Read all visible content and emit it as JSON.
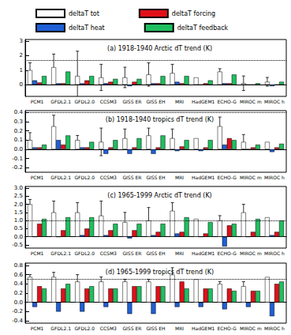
{
  "chart_data": [
    {
      "type": "bar",
      "title": "(a) 1918-1940 Arctic dT trend (K)",
      "legend": "top",
      "grid": false,
      "categories": [
        "PCM1",
        "GFDL2.1",
        "GFDL2.0",
        "CCSM3",
        "GISS ER",
        "GISS EH",
        "MRI",
        "HadGEM1",
        "ECHO-G",
        "MIROC m",
        "MIROC h"
      ],
      "ylim": [
        -0.8,
        3.1
      ],
      "yticks": [
        0,
        1,
        2,
        3
      ],
      "reference_line": 1.7,
      "series": [
        {
          "name": "deltaT tot",
          "color": "#ffffff",
          "values": [
            1.0,
            1.2,
            0.6,
            0.5,
            0.5,
            0.7,
            0.8,
            0.5,
            0.9,
            0.1,
            0.2
          ],
          "errors": [
            0.5,
            0.9,
            1.7,
            0.9,
            0.7,
            0.8,
            0.6,
            null,
            0.2,
            0.5,
            0.3
          ]
        },
        {
          "name": "deltaT heat",
          "color": "#1f5fd6",
          "values": [
            0.3,
            0.1,
            0.1,
            0.1,
            -0.1,
            0.1,
            0.2,
            0.0,
            0.1,
            0.0,
            -0.1
          ]
        },
        {
          "name": "deltaT forcing",
          "color": "#e0101a",
          "values": [
            0.15,
            0.1,
            0.3,
            0.2,
            0.2,
            0.1,
            0.1,
            0.1,
            0.1,
            0.0,
            0.0
          ]
        },
        {
          "name": "deltaT feedback",
          "color": "#1fbf5f",
          "values": [
            0.6,
            0.9,
            0.6,
            0.4,
            0.4,
            0.6,
            0.6,
            0.3,
            0.7,
            0.1,
            0.2
          ]
        }
      ]
    },
    {
      "type": "bar",
      "title": "(b) 1918-1940 tropics dT trend (K)",
      "grid": false,
      "categories": [
        "PCM1",
        "GFDL2.1",
        "GFDL2.0",
        "CCSM3",
        "GISS ER",
        "GISS EH",
        "MRI",
        "HadGEM1",
        "ECHO-G",
        "MIROC m",
        "MIROC h"
      ],
      "ylim": [
        -0.25,
        0.42
      ],
      "yticks": [
        -0.2,
        -0.1,
        {
          "value": 0,
          "label": "0.0"
        },
        0.1,
        0.2,
        0.3,
        0.4
      ],
      "reference_line": 0.4,
      "series": [
        {
          "name": "deltaT tot",
          "color": "#ffffff",
          "values": [
            0.1,
            0.25,
            0.1,
            0.08,
            0.12,
            0.15,
            0.12,
            0.12,
            0.25,
            0.08,
            0.08
          ],
          "errors": [
            0.08,
            0.12,
            0.05,
            0.15,
            0.1,
            0.08,
            0.1,
            null,
            0.1,
            0.08,
            null
          ]
        },
        {
          "name": "deltaT heat",
          "color": "#1f5fd6",
          "values": [
            0.02,
            0.1,
            0.02,
            -0.05,
            -0.05,
            -0.05,
            -0.02,
            -0.02,
            0.05,
            0.0,
            -0.03
          ]
        },
        {
          "name": "deltaT forcing",
          "color": "#e0101a",
          "values": [
            0.02,
            0.05,
            0.02,
            0.02,
            0.02,
            0.02,
            0.03,
            0.02,
            0.12,
            0.02,
            0.02
          ]
        },
        {
          "name": "deltaT feedback",
          "color": "#1fbf5f",
          "values": [
            0.05,
            0.15,
            0.08,
            0.1,
            0.12,
            0.15,
            0.1,
            0.1,
            0.1,
            0.05,
            0.06
          ]
        }
      ]
    },
    {
      "type": "bar",
      "title": "(c) 1965-1999 Arctic dT trend (K)",
      "grid": false,
      "categories": [
        "PCM1",
        "GFDL2.1",
        "GFDL2.0",
        "CCSM3",
        "GISS ER",
        "GISS EH",
        "MRI",
        "HadGEM1",
        "ECHO-G",
        "MIROC m",
        "MIROC h"
      ],
      "ylim": [
        -0.7,
        3.1
      ],
      "yticks": [
        -0.5,
        {
          "value": 0,
          "label": "0.0"
        },
        0.5,
        {
          "value": 1,
          "label": "1.0"
        },
        1.5,
        {
          "value": 2,
          "label": "2.0"
        },
        2.5,
        {
          "value": 3,
          "label": "3.0"
        }
      ],
      "reference_line": 1.0,
      "series": [
        {
          "name": "deltaT tot",
          "color": "#ffffff",
          "values": [
            2.0,
            1.5,
            1.5,
            1.3,
            0.9,
            1.0,
            1.6,
            1.1,
            1.0,
            1.5,
            1.2
          ],
          "errors": [
            0.3,
            0.7,
            0.6,
            0.9,
            0.6,
            0.8,
            0.5,
            null,
            0.3,
            0.5,
            null
          ]
        },
        {
          "name": "deltaT heat",
          "color": "#1f5fd6",
          "values": [
            0.0,
            0.0,
            0.1,
            0.1,
            -0.1,
            0.1,
            0.2,
            0.0,
            -0.6,
            0.0,
            0.1
          ]
        },
        {
          "name": "deltaT forcing",
          "color": "#e0101a",
          "values": [
            0.8,
            0.4,
            0.5,
            0.4,
            0.4,
            0.3,
            0.3,
            0.2,
            0.7,
            0.3,
            0.3
          ]
        },
        {
          "name": "deltaT feedback",
          "color": "#1fbf5f",
          "values": [
            1.1,
            1.2,
            1.2,
            0.8,
            0.8,
            0.8,
            1.2,
            0.9,
            0.8,
            1.1,
            1.0
          ]
        }
      ]
    },
    {
      "type": "bar",
      "title": "(d) 1965-1999 tropics dT trend (K)",
      "grid": false,
      "categories": [
        "PCM1",
        "GFDL2.1",
        "GFDL2.0",
        "CCSM3",
        "GISS ER",
        "GISS EH",
        "MRI",
        "HadGEM1",
        "ECHO-G",
        "MIROC m",
        "MIROC h"
      ],
      "ylim": [
        -0.45,
        0.85
      ],
      "yticks": [
        -0.4,
        -0.2,
        {
          "value": 0,
          "label": "0.0"
        },
        0.2,
        0.4,
        0.6,
        0.8
      ],
      "reference_line": 0.5,
      "series": [
        {
          "name": "deltaT tot",
          "color": "#ffffff",
          "values": [
            0.55,
            0.55,
            0.45,
            0.45,
            0.45,
            0.45,
            0.6,
            0.5,
            0.4,
            0.35,
            0.55
          ],
          "errors": [
            0.05,
            0.1,
            0.15,
            0.1,
            0.05,
            0.05,
            0.15,
            null,
            0.05,
            0.1,
            null
          ]
        },
        {
          "name": "deltaT heat",
          "color": "#1f5fd6",
          "values": [
            -0.1,
            -0.2,
            -0.2,
            -0.1,
            -0.25,
            -0.25,
            -0.1,
            -0.1,
            -0.15,
            -0.1,
            -0.3
          ]
        },
        {
          "name": "deltaT forcing",
          "color": "#e0101a",
          "values": [
            0.35,
            0.3,
            0.3,
            0.3,
            0.35,
            0.35,
            0.45,
            0.3,
            0.3,
            0.25,
            0.4
          ]
        },
        {
          "name": "deltaT feedback",
          "color": "#1fbf5f",
          "values": [
            0.3,
            0.4,
            0.35,
            0.3,
            0.35,
            0.35,
            0.3,
            0.3,
            0.25,
            0.25,
            0.45
          ]
        }
      ]
    }
  ]
}
